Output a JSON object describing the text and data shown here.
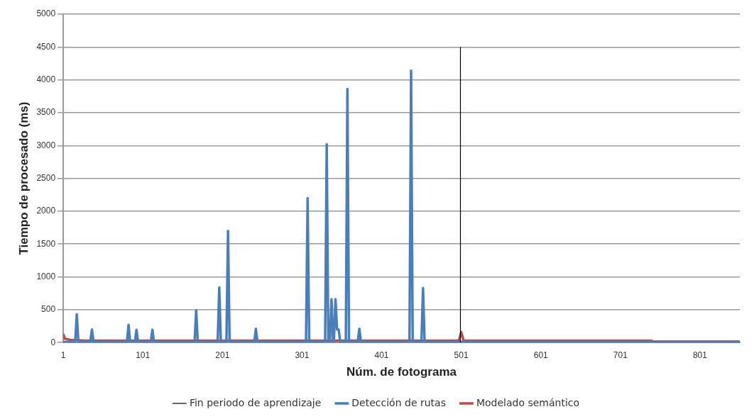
{
  "chart_data": {
    "type": "line",
    "xlabel": "Núm. de fotograma",
    "ylabel": "Tiempo de procesado (ms)",
    "xlim": [
      1,
      851
    ],
    "xticks": [
      1,
      101,
      201,
      301,
      401,
      501,
      601,
      701,
      801
    ],
    "ylim": [
      0,
      5000
    ],
    "yticks": [
      0,
      500,
      1000,
      1500,
      2000,
      2500,
      3000,
      3500,
      4000,
      4500,
      5000
    ],
    "grid": "y",
    "legend": "bottom",
    "marker": "none",
    "line_style": "solid",
    "series": [
      {
        "name": "Fin periodo de aprendizaje",
        "color": "#000000",
        "x": [
          500,
          500
        ],
        "values": [
          0,
          4500
        ]
      },
      {
        "name": "Detección de rutas",
        "color": "#4a7ebb",
        "x": [
          1,
          16,
          18,
          20,
          35,
          37,
          39,
          81,
          83,
          85,
          91,
          93,
          95,
          111,
          113,
          115,
          166,
          168,
          170,
          195,
          197,
          199,
          206,
          208,
          210,
          241,
          243,
          245,
          306,
          308,
          310,
          330,
          332,
          334,
          336,
          338,
          340,
          341,
          343,
          345,
          347,
          349,
          356,
          358,
          360,
          371,
          373,
          375,
          436,
          438,
          440,
          451,
          453,
          455,
          851
        ],
        "values": [
          10,
          10,
          430,
          10,
          10,
          200,
          10,
          10,
          270,
          10,
          10,
          195,
          10,
          10,
          195,
          10,
          10,
          490,
          10,
          10,
          840,
          10,
          10,
          1700,
          10,
          10,
          210,
          10,
          10,
          2200,
          10,
          10,
          3020,
          10,
          10,
          660,
          10,
          10,
          660,
          200,
          200,
          10,
          10,
          3860,
          10,
          10,
          210,
          10,
          10,
          4140,
          10,
          10,
          830,
          10,
          10
        ]
      },
      {
        "name": "Modelado semántico",
        "color": "#be4b48",
        "x": [
          1,
          3,
          10,
          30,
          498,
          501,
          504,
          740,
          742,
          851
        ],
        "values": [
          130,
          60,
          40,
          30,
          30,
          160,
          30,
          30,
          15,
          15
        ]
      }
    ]
  }
}
